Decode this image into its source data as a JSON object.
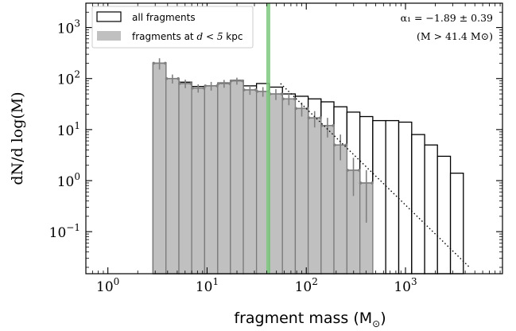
{
  "chart_data": {
    "type": "bar",
    "scale": {
      "x": "log",
      "y": "log"
    },
    "xlim": [
      0.6,
      9500
    ],
    "ylim": [
      0.015,
      3000
    ],
    "xlabel": {
      "text": "fragment mass (M",
      "sub": "⊙",
      "close": ")"
    },
    "ylabel": "dN/d log(M)",
    "x_ticks": [
      {
        "value": 1,
        "base": "10",
        "exp": "0"
      },
      {
        "value": 10,
        "base": "10",
        "exp": "1"
      },
      {
        "value": 100,
        "base": "10",
        "exp": "2"
      },
      {
        "value": 1000,
        "base": "10",
        "exp": "3"
      }
    ],
    "y_ticks": [
      {
        "value": 0.1,
        "base": "10",
        "exp": "−1"
      },
      {
        "value": 1,
        "base": "10",
        "exp": "0"
      },
      {
        "value": 10,
        "base": "10",
        "exp": "1"
      },
      {
        "value": 100,
        "base": "10",
        "exp": "2"
      },
      {
        "value": 1000,
        "base": "10",
        "exp": "3"
      }
    ],
    "bin_edges": [
      2.85,
      3.85,
      5.2,
      7.0,
      9.45,
      12.8,
      17.2,
      23.2,
      31.5,
      42.4,
      57.5,
      77.5,
      104.5,
      141,
      190,
      257,
      347,
      468,
      632,
      855,
      1155,
      1560,
      2100,
      2840,
      3830
    ],
    "series": [
      {
        "name": "all fragments",
        "style": "outline",
        "values": [
          200,
          100,
          85,
          70,
          72,
          82,
          92,
          72,
          80,
          68,
          50,
          45,
          40,
          35,
          28,
          22,
          18,
          15,
          15,
          14,
          8,
          5,
          3,
          1.4
        ]
      },
      {
        "name": "fragments at d < 5 kpc",
        "legend_prefix": "fragments at ",
        "legend_math": "d < 5",
        "legend_suffix": " kpc",
        "style": "filled",
        "values": [
          200,
          100,
          80,
          65,
          72,
          80,
          90,
          60,
          56,
          50,
          40,
          26,
          17,
          12,
          5,
          1.6,
          0.9
        ],
        "errors": [
          [
            150,
            250
          ],
          [
            80,
            120
          ],
          [
            65,
            95
          ],
          [
            53,
            77
          ],
          [
            58,
            86
          ],
          [
            66,
            94
          ],
          [
            76,
            104
          ],
          [
            48,
            72
          ],
          [
            44,
            68
          ],
          [
            38,
            62
          ],
          [
            30,
            50
          ],
          [
            18,
            34
          ],
          [
            11,
            23
          ],
          [
            7,
            17
          ],
          [
            2.5,
            8
          ],
          [
            0.5,
            2.8
          ],
          [
            0.15,
            1.6
          ]
        ]
      }
    ],
    "vertical_line": {
      "x": 41.4,
      "color": "#7cc87c"
    },
    "power_law_fit": {
      "x_start": 55,
      "x_end": 4500,
      "slope": -1.89,
      "y_at_start": 80
    },
    "annotation": {
      "line1": "α₁ = −1.89 ± 0.39",
      "line2": "(M > 41.4 M⊙)"
    },
    "legend_position": "top-left",
    "grid": false,
    "colors": {
      "filled": "#c0c0c0",
      "filled_edge": "#7a7a7a",
      "outline": "#000000",
      "errorbar": "#808080"
    }
  }
}
